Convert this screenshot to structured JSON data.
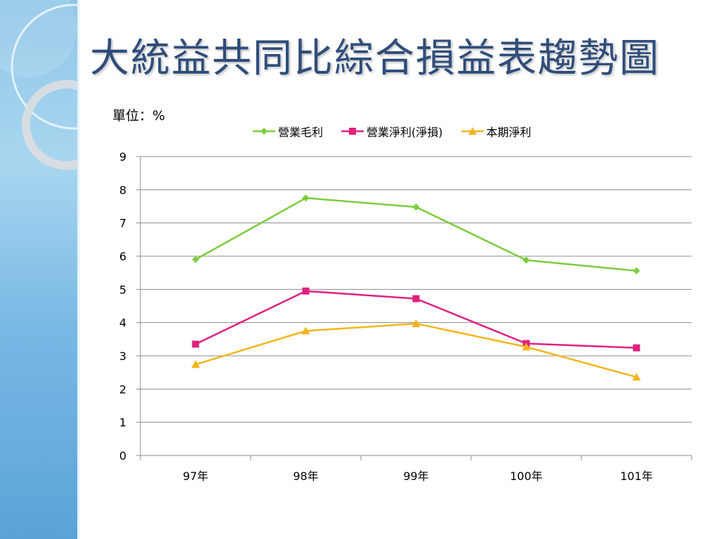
{
  "slide": {
    "title": "大統益共同比綜合損益表趨勢圖",
    "unit_label": "單位：%"
  },
  "chart_data": {
    "type": "line",
    "categories": [
      "97年",
      "98年",
      "99年",
      "100年",
      "101年"
    ],
    "ylim": [
      0,
      9
    ],
    "yticks": [
      "0",
      "1",
      "2",
      "3",
      "4",
      "5",
      "6",
      "7",
      "8",
      "9"
    ],
    "grid": true,
    "legend_position": "top",
    "series": [
      {
        "name": "營業毛利",
        "color": "#7ccc3c",
        "marker": "diamond",
        "values": [
          5.9,
          7.75,
          7.48,
          5.88,
          5.56
        ]
      },
      {
        "name": "營業淨利(淨損)",
        "color": "#e0207e",
        "marker": "square",
        "values": [
          3.35,
          4.95,
          4.72,
          3.37,
          3.24
        ]
      },
      {
        "name": "本期淨利",
        "color": "#f4b51c",
        "marker": "triangle",
        "values": [
          2.74,
          3.75,
          3.97,
          3.27,
          2.36
        ]
      }
    ]
  }
}
